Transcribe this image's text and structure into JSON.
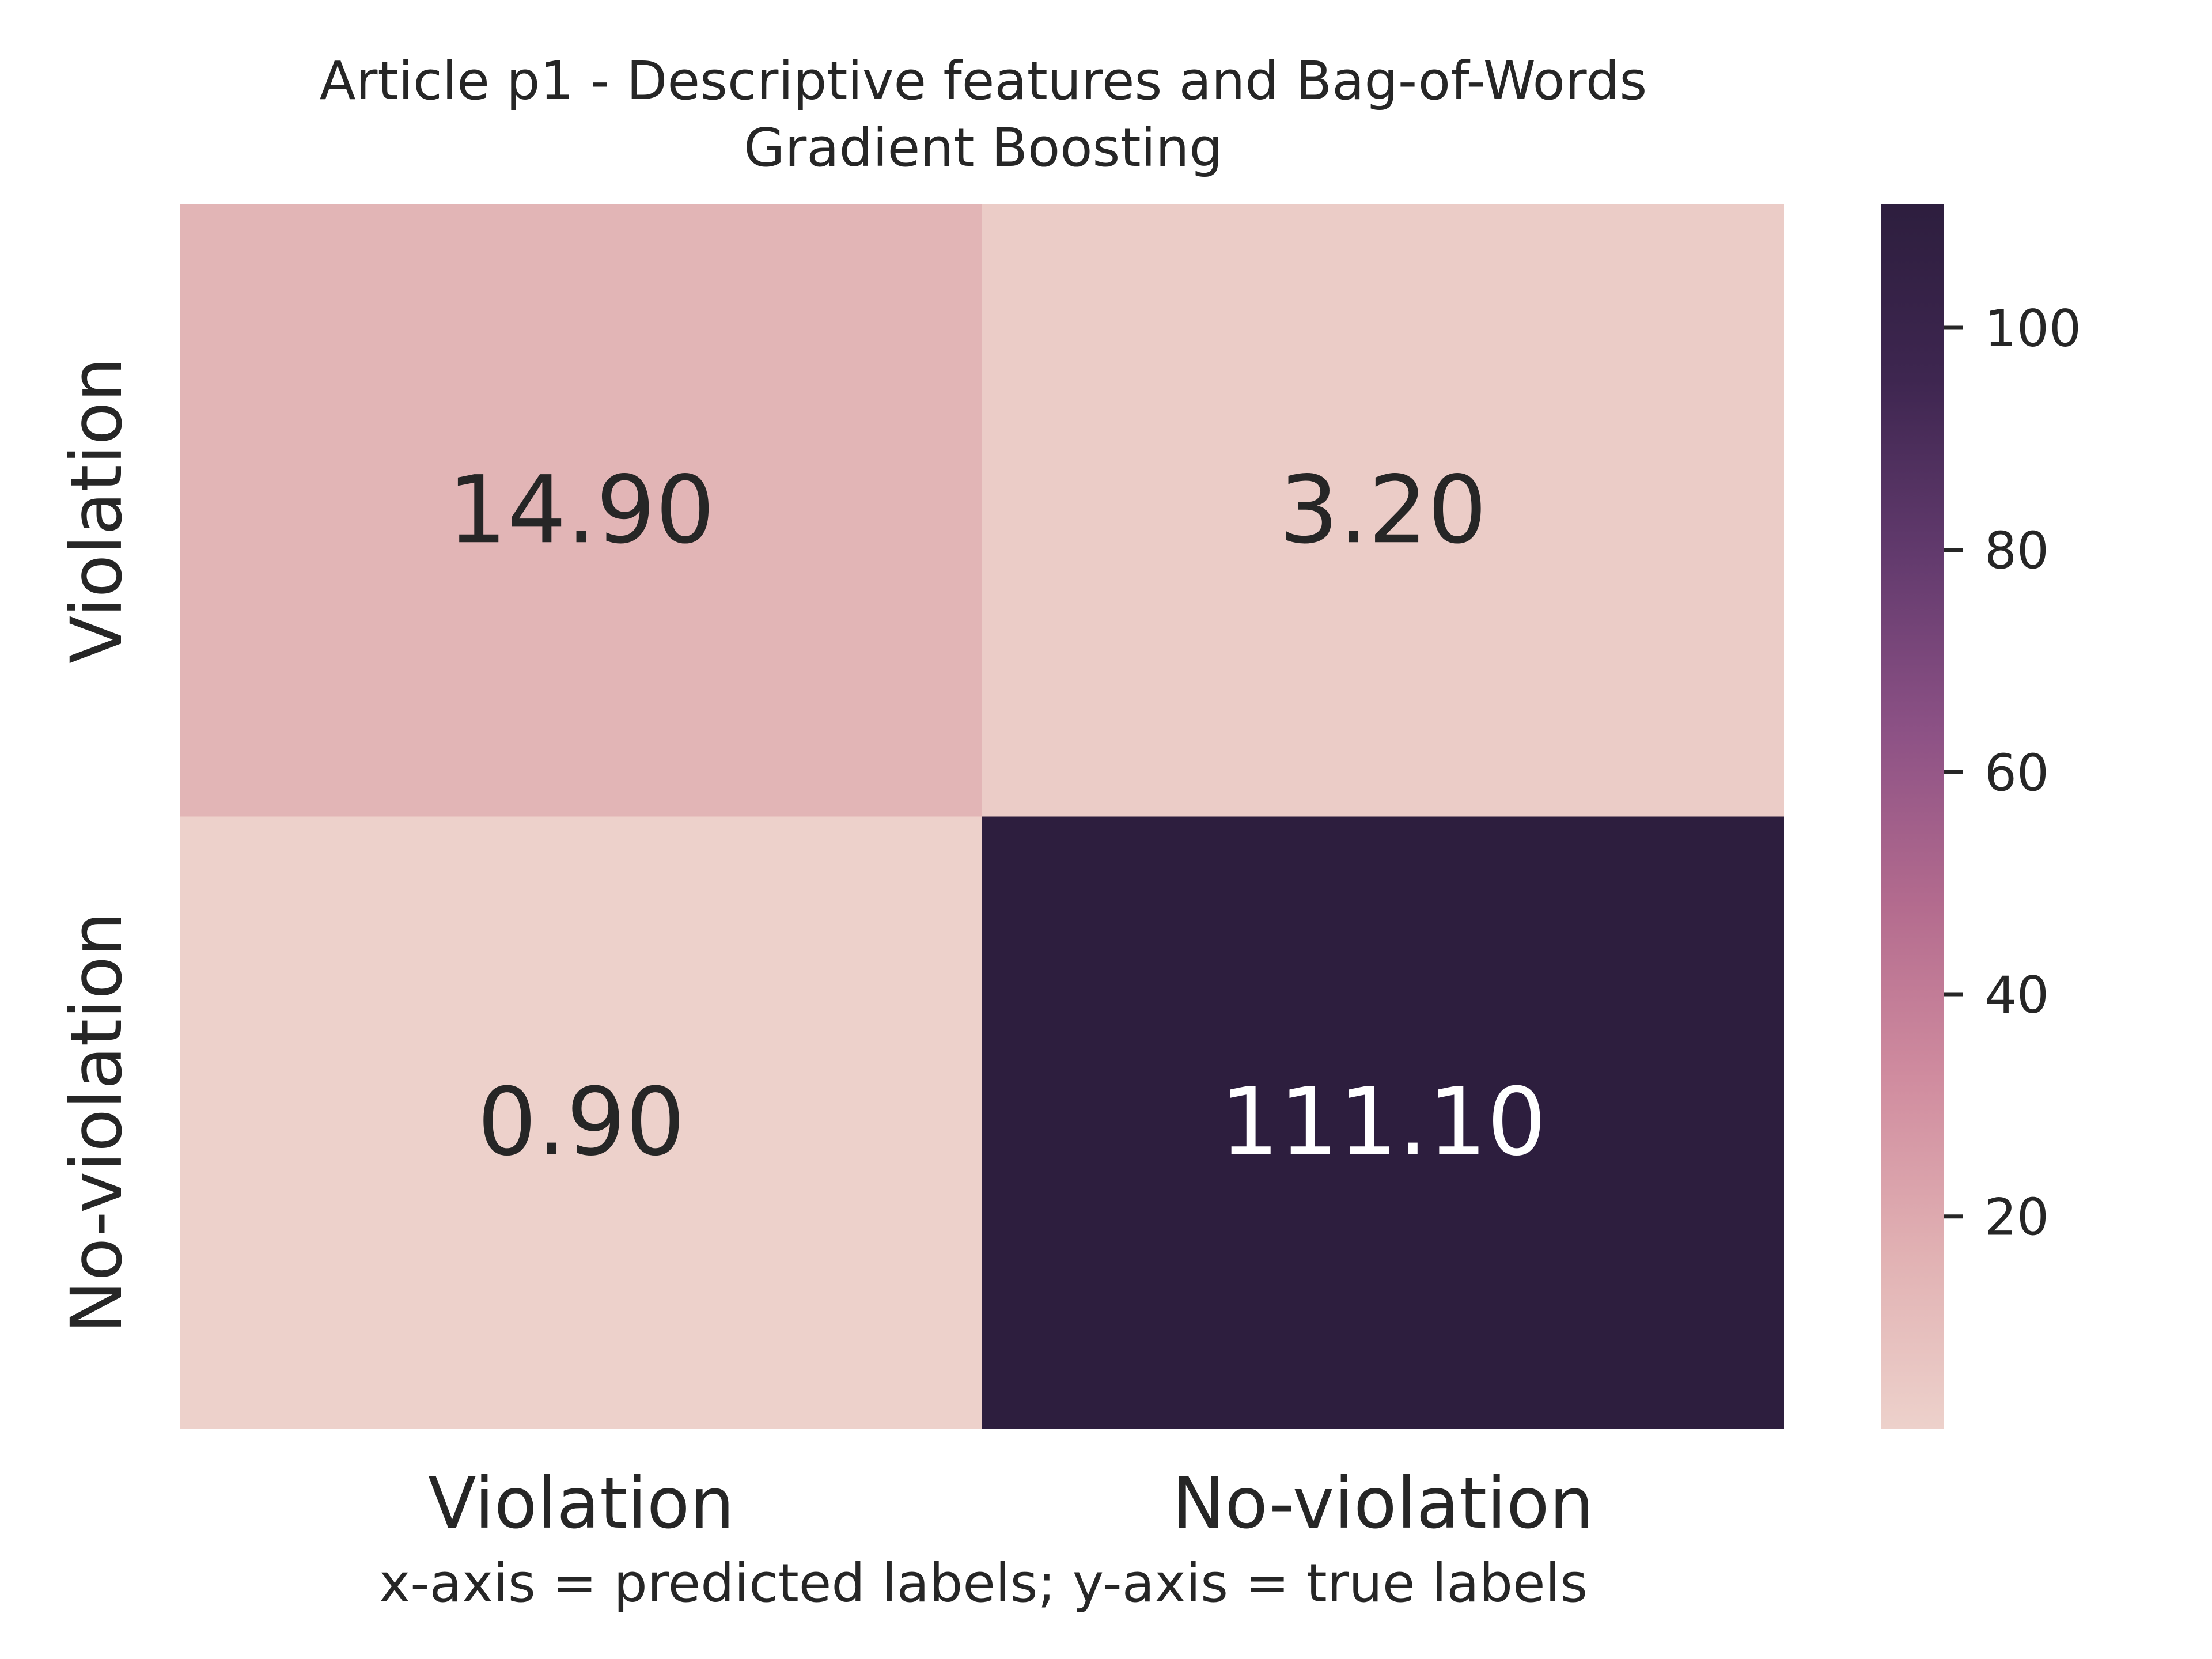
{
  "chart_data": {
    "type": "heatmap",
    "title": "Article p1 - Descriptive features and Bag-of-Words",
    "subtitle": "Gradient Boosting",
    "xlabel": "x-axis = predicted labels; y-axis = true labels",
    "ylabel": "",
    "x_categories": [
      "Violation",
      "No-violation"
    ],
    "y_categories": [
      "Violation",
      "No-violation"
    ],
    "values": [
      [
        14.9,
        3.2
      ],
      [
        0.9,
        111.1
      ]
    ],
    "cell_labels": [
      [
        "14.90",
        "3.20"
      ],
      [
        "0.90",
        "111.10"
      ]
    ],
    "colorbar": {
      "range": [
        0.9,
        111.1
      ],
      "ticks": [
        20,
        40,
        60,
        80,
        100
      ],
      "tick_labels": [
        "20",
        "40",
        "60",
        "80",
        "100"
      ],
      "colors_low_to_high": [
        "#edd1cb",
        "#e1b1b3",
        "#d08c9f",
        "#b36b8e",
        "#8c5185",
        "#623a6d",
        "#3e2650",
        "#2d1e3e"
      ]
    },
    "grid": false,
    "legend": "colorbar-right"
  }
}
